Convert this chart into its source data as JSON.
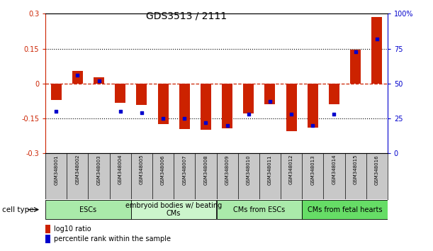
{
  "title": "GDS3513 / 2111",
  "samples": [
    "GSM348001",
    "GSM348002",
    "GSM348003",
    "GSM348004",
    "GSM348005",
    "GSM348006",
    "GSM348007",
    "GSM348008",
    "GSM348009",
    "GSM348010",
    "GSM348011",
    "GSM348012",
    "GSM348013",
    "GSM348014",
    "GSM348015",
    "GSM348016"
  ],
  "log10_ratio": [
    -0.07,
    0.055,
    0.028,
    -0.082,
    -0.092,
    -0.175,
    -0.195,
    -0.198,
    -0.192,
    -0.13,
    -0.09,
    -0.207,
    -0.19,
    -0.09,
    0.145,
    0.285
  ],
  "percentile_rank": [
    30,
    56,
    52,
    30,
    29,
    25,
    25,
    22,
    20,
    28,
    37,
    28,
    20,
    28,
    73,
    82
  ],
  "cell_type_groups": [
    {
      "label": "ESCs",
      "start": 0,
      "end": 4,
      "color": "#aaeaaa"
    },
    {
      "label": "embryoid bodies w/ beating\nCMs",
      "start": 4,
      "end": 8,
      "color": "#ccf5cc"
    },
    {
      "label": "CMs from ESCs",
      "start": 8,
      "end": 12,
      "color": "#aaeaaa"
    },
    {
      "label": "CMs from fetal hearts",
      "start": 12,
      "end": 16,
      "color": "#66dd66"
    }
  ],
  "bar_color_red": "#cc2200",
  "bar_color_blue": "#0000cc",
  "left_ylim": [
    -0.3,
    0.3
  ],
  "right_ylim": [
    0,
    100
  ],
  "left_yticks": [
    -0.3,
    -0.15,
    0,
    0.15,
    0.3
  ],
  "right_yticks": [
    0,
    25,
    50,
    75,
    100
  ],
  "right_yticklabels": [
    "0",
    "25",
    "50",
    "75",
    "100%"
  ],
  "hline_dotted_values": [
    0.15,
    -0.15
  ],
  "bar_width": 0.5,
  "background_color": "#ffffff",
  "title_fontsize": 10,
  "tick_fontsize": 7,
  "sample_fontsize": 5.0,
  "celltype_fontsize": 7,
  "legend_fontsize": 7,
  "celllabel_fontsize": 7.5
}
